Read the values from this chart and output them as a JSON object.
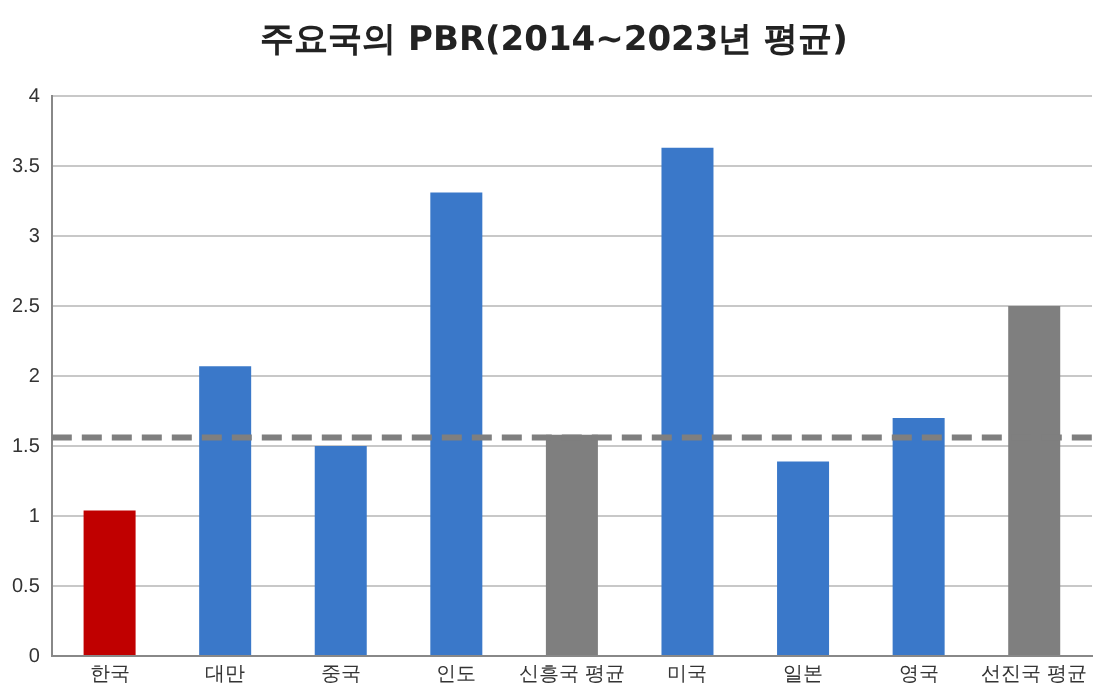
{
  "chart_data": {
    "type": "bar",
    "title": "주요국의 PBR(2014~2023년 평균)",
    "categories": [
      "한국",
      "대만",
      "중국",
      "인도",
      "신흥국 평균",
      "미국",
      "일본",
      "영국",
      "선진국 평균"
    ],
    "values": [
      1.04,
      2.07,
      1.5,
      3.31,
      1.58,
      3.63,
      1.39,
      1.7,
      2.5
    ],
    "colors": [
      "#c00000",
      "#3a78c9",
      "#3a78c9",
      "#3a78c9",
      "#7f7f7f",
      "#3a78c9",
      "#3a78c9",
      "#3a78c9",
      "#7f7f7f"
    ],
    "ylim": [
      0,
      4
    ],
    "yticks": [
      0,
      0.5,
      1,
      1.5,
      2,
      2.5,
      3,
      3.5,
      4
    ],
    "grid": "y",
    "legend": false,
    "ref_lines": [
      {
        "axis": "y",
        "value": 1.56,
        "color": "#7f7f7f",
        "line_style": "dashed"
      }
    ]
  }
}
